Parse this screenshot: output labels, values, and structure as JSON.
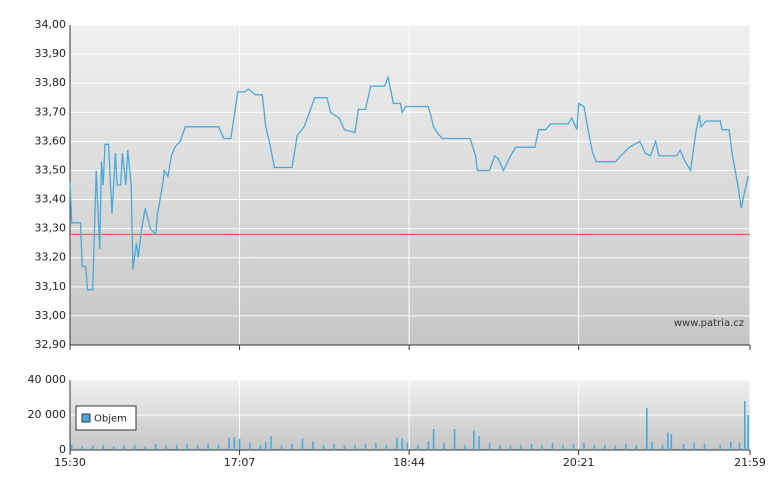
{
  "chart_data": [
    {
      "type": "line",
      "color": "#4aa8d8",
      "reference_line": 33.28,
      "reference_color": "#e06060",
      "annotation": "www.patria.cz",
      "xlim": [
        930,
        1319
      ],
      "xticks": [
        930,
        1027,
        1124,
        1221,
        1319
      ],
      "ylim": [
        32.9,
        34.0
      ],
      "yticks": [
        {
          "value": 32.9,
          "label": "32,90"
        },
        {
          "value": 33.0,
          "label": "33,00"
        },
        {
          "value": 33.1,
          "label": "33,10"
        },
        {
          "value": 33.2,
          "label": "33,20"
        },
        {
          "value": 33.3,
          "label": "33,30"
        },
        {
          "value": 33.4,
          "label": "33,40"
        },
        {
          "value": 33.5,
          "label": "33,50"
        },
        {
          "value": 33.6,
          "label": "33,60"
        },
        {
          "value": 33.7,
          "label": "33,70"
        },
        {
          "value": 33.8,
          "label": "33,80"
        },
        {
          "value": 33.9,
          "label": "33,90"
        },
        {
          "value": 34.0,
          "label": "34,00"
        }
      ],
      "grid": true,
      "x": [
        930,
        931,
        936,
        937,
        939,
        940,
        943,
        944,
        945,
        947,
        948,
        949,
        950,
        952,
        954,
        956,
        957,
        959,
        960,
        962,
        963,
        965,
        966,
        968,
        969,
        971,
        973,
        976,
        979,
        980,
        983,
        984,
        986,
        988,
        990,
        993,
        996,
        999,
        1015,
        1018,
        1022,
        1023,
        1026,
        1030,
        1032,
        1036,
        1040,
        1042,
        1044,
        1047,
        1057,
        1060,
        1064,
        1070,
        1077,
        1079,
        1084,
        1087,
        1093,
        1095,
        1099,
        1102,
        1110,
        1112,
        1115,
        1119,
        1120,
        1122,
        1135,
        1138,
        1140,
        1143,
        1159,
        1162,
        1163,
        1170,
        1173,
        1175,
        1178,
        1182,
        1185,
        1196,
        1198,
        1202,
        1205,
        1215,
        1217,
        1220,
        1221,
        1224,
        1227,
        1229,
        1231,
        1242,
        1245,
        1250,
        1256,
        1259,
        1262,
        1265,
        1267,
        1277,
        1279,
        1282,
        1285,
        1288,
        1290,
        1291,
        1294,
        1302,
        1303,
        1307,
        1309,
        1312,
        1314,
        1316,
        1318
      ],
      "values": [
        33.46,
        33.32,
        33.32,
        33.17,
        33.17,
        33.09,
        33.09,
        33.3,
        33.5,
        33.23,
        33.53,
        33.45,
        33.59,
        33.59,
        33.35,
        33.56,
        33.45,
        33.45,
        33.56,
        33.45,
        33.57,
        33.45,
        33.16,
        33.25,
        33.2,
        33.3,
        33.37,
        33.3,
        33.28,
        33.35,
        33.45,
        33.5,
        33.48,
        33.55,
        33.58,
        33.6,
        33.65,
        33.65,
        33.65,
        33.61,
        33.61,
        33.65,
        33.77,
        33.77,
        33.78,
        33.76,
        33.76,
        33.65,
        33.6,
        33.51,
        33.51,
        33.62,
        33.65,
        33.75,
        33.75,
        33.7,
        33.68,
        33.64,
        33.63,
        33.71,
        33.71,
        33.79,
        33.79,
        33.82,
        33.73,
        33.73,
        33.7,
        33.72,
        33.72,
        33.65,
        33.63,
        33.61,
        33.61,
        33.55,
        33.5,
        33.5,
        33.55,
        33.54,
        33.5,
        33.55,
        33.58,
        33.58,
        33.64,
        33.64,
        33.66,
        33.66,
        33.68,
        33.64,
        33.73,
        33.72,
        33.62,
        33.56,
        33.53,
        33.53,
        33.55,
        33.58,
        33.6,
        33.56,
        33.55,
        33.6,
        33.55,
        33.55,
        33.57,
        33.53,
        33.5,
        33.63,
        33.69,
        33.65,
        33.67,
        33.67,
        33.64,
        33.64,
        33.55,
        33.45,
        33.37,
        33.43,
        33.48
      ]
    },
    {
      "type": "bar",
      "xlim": [
        930,
        1319
      ],
      "xticks": [
        {
          "value": 930,
          "label": "15:30"
        },
        {
          "value": 1027,
          "label": "17:07"
        },
        {
          "value": 1124,
          "label": "18:44"
        },
        {
          "value": 1221,
          "label": "20:21"
        },
        {
          "value": 1319,
          "label": "21:59"
        }
      ],
      "ylim": [
        0,
        40000
      ],
      "yticks": [
        0,
        {
          "value": 20000,
          "label": "20 000"
        },
        {
          "value": 40000,
          "label": "40 000"
        }
      ],
      "grid": true,
      "legend": "upper left",
      "x": [
        931,
        937,
        943,
        949,
        955,
        961,
        967,
        973,
        979,
        985,
        991,
        997,
        1003,
        1009,
        1015,
        1021,
        1024,
        1027,
        1033,
        1039,
        1042,
        1045,
        1051,
        1057,
        1063,
        1069,
        1075,
        1081,
        1087,
        1093,
        1099,
        1105,
        1111,
        1117,
        1120,
        1123,
        1129,
        1135,
        1138,
        1144,
        1150,
        1156,
        1161,
        1164,
        1170,
        1176,
        1182,
        1188,
        1194,
        1200,
        1206,
        1212,
        1218,
        1224,
        1230,
        1236,
        1242,
        1248,
        1254,
        1260,
        1263,
        1269,
        1272,
        1274,
        1281,
        1287,
        1293,
        1302,
        1308,
        1313,
        1316,
        1318
      ],
      "series": [
        {
          "name": "Objem",
          "color": "#4aa8d8",
          "values": [
            3000,
            2000,
            2500,
            3000,
            2000,
            2500,
            3000,
            2000,
            3500,
            2500,
            3000,
            3500,
            3000,
            3500,
            3000,
            7000,
            7500,
            6500,
            4000,
            3000,
            4500,
            8000,
            2500,
            3500,
            6500,
            5000,
            3000,
            3500,
            2500,
            3000,
            3500,
            4000,
            3000,
            7000,
            6500,
            4000,
            3000,
            5000,
            12000,
            4000,
            12000,
            3000,
            11000,
            8000,
            4000,
            3000,
            2500,
            3000,
            3500,
            3000,
            4000,
            3000,
            3500,
            4000,
            3000,
            3000,
            2500,
            3500,
            3000,
            24000,
            4500,
            3000,
            10000,
            9000,
            3500,
            4000,
            3500,
            3000,
            5000,
            4000,
            28000,
            20000
          ]
        }
      ]
    }
  ]
}
